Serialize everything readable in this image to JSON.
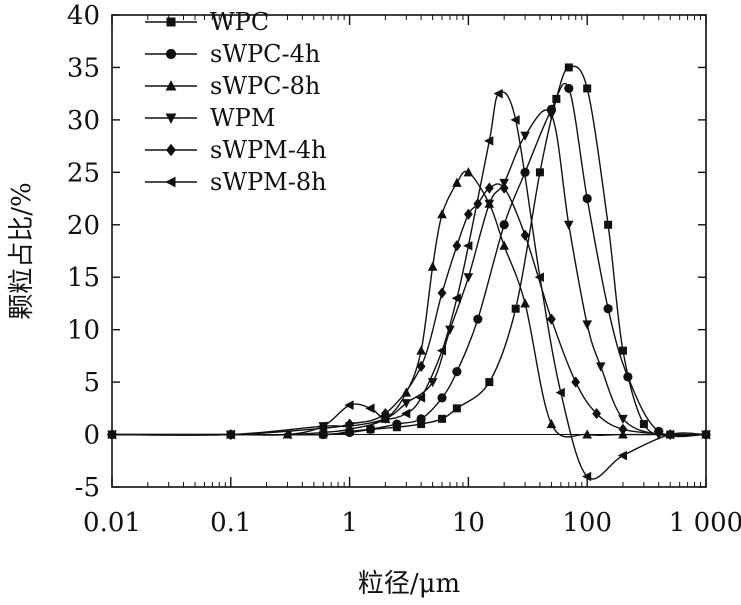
{
  "chart_data": {
    "type": "line",
    "xscale": "log",
    "xlim": [
      0.01,
      1000
    ],
    "ylim": [
      -5,
      40
    ],
    "xlabel": "粒径/μm",
    "ylabel": "颗粒占比/%",
    "x_ticks": [
      {
        "value": 0.01,
        "label": "0.01"
      },
      {
        "value": 0.1,
        "label": "0.1"
      },
      {
        "value": 1,
        "label": "1"
      },
      {
        "value": 10,
        "label": "10"
      },
      {
        "value": 100,
        "label": "100"
      },
      {
        "value": 1000,
        "label": "1 000"
      }
    ],
    "y_ticks": [
      -5,
      0,
      5,
      10,
      15,
      20,
      25,
      30,
      35,
      40
    ],
    "legend_position": "top-left",
    "series": [
      {
        "name": "WPC",
        "marker": "square",
        "x": [
          0.01,
          0.1,
          0.6,
          1,
          1.5,
          2.5,
          4,
          6,
          8,
          15,
          25,
          40,
          55,
          70,
          100,
          150,
          200,
          300,
          500,
          1000
        ],
        "y": [
          0,
          0,
          0,
          0.3,
          0.5,
          0.7,
          1,
          1.5,
          2.5,
          5,
          12,
          25,
          32,
          35,
          33,
          20,
          8,
          1,
          0,
          0
        ]
      },
      {
        "name": "sWPC-4h",
        "marker": "circle",
        "x": [
          0.01,
          0.1,
          0.6,
          1,
          1.5,
          2.5,
          4,
          6,
          8,
          12,
          20,
          30,
          50,
          70,
          100,
          150,
          220,
          400,
          1000
        ],
        "y": [
          0,
          0,
          0,
          0.2,
          0.5,
          1,
          1.5,
          3.5,
          6,
          11,
          20,
          25,
          31,
          33,
          22.5,
          12,
          5.5,
          0.3,
          0
        ]
      },
      {
        "name": "sWPC-8h",
        "marker": "triangle-up",
        "x": [
          0.01,
          0.1,
          0.3,
          0.6,
          1,
          2,
          3,
          4,
          5,
          6,
          8,
          10,
          15,
          20,
          30,
          50,
          100,
          200,
          500,
          1000
        ],
        "y": [
          0,
          0,
          0,
          0.2,
          0.5,
          1.5,
          4,
          8,
          16,
          21,
          24,
          25,
          22,
          18,
          12.5,
          1,
          0,
          0,
          0,
          0
        ]
      },
      {
        "name": "WPM",
        "marker": "triangle-down",
        "x": [
          0.01,
          0.1,
          0.6,
          1,
          2,
          3,
          5,
          7,
          10,
          15,
          20,
          30,
          50,
          70,
          100,
          130,
          200,
          400,
          1000
        ],
        "y": [
          0,
          0,
          0.8,
          0.8,
          1.5,
          3,
          5,
          10,
          15,
          22,
          24,
          28.5,
          30.5,
          20,
          10.5,
          6.5,
          1.5,
          0,
          0
        ]
      },
      {
        "name": "sWPM-4h",
        "marker": "diamond",
        "x": [
          0.01,
          0.1,
          0.6,
          1,
          2,
          4,
          6,
          8,
          10,
          12,
          15,
          20,
          30,
          50,
          80,
          120,
          200,
          500,
          1000
        ],
        "y": [
          0,
          0,
          0.6,
          1,
          2,
          6.5,
          13.5,
          18,
          21,
          22,
          23.5,
          23.5,
          19,
          11,
          5,
          2,
          0.5,
          0,
          0
        ]
      },
      {
        "name": "sWPM-8h",
        "marker": "triangle-left",
        "x": [
          0.01,
          0.1,
          0.3,
          0.6,
          1,
          1.5,
          2,
          3,
          4,
          6,
          8,
          10,
          15,
          18,
          25,
          40,
          60,
          100,
          200,
          500,
          1000
        ],
        "y": [
          0,
          0,
          0,
          0.8,
          2.8,
          2.5,
          1.5,
          2,
          3.5,
          8,
          13,
          18,
          28,
          32.5,
          30,
          15,
          4,
          -4,
          -2,
          0,
          0
        ]
      }
    ]
  }
}
